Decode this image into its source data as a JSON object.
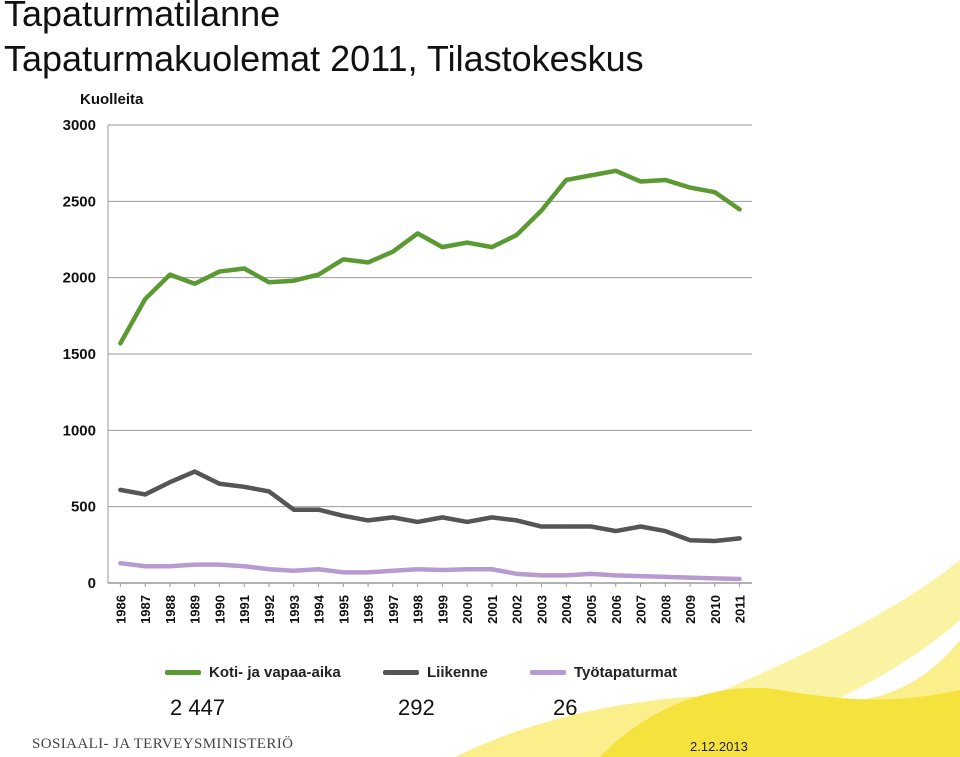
{
  "header": {
    "title_line1": "Tapaturmatilanne",
    "title_line2": "Tapaturmakuolemat 2011, Tilastokeskus"
  },
  "chart_data": {
    "type": "line",
    "ylabel": "Kuolleita",
    "ylim": [
      0,
      3000
    ],
    "yticks": [
      0,
      500,
      1000,
      1500,
      2000,
      2500,
      3000
    ],
    "grid": true,
    "legend_position": "bottom",
    "categories": [
      "1986",
      "1987",
      "1988",
      "1989",
      "1990",
      "1991",
      "1992",
      "1993",
      "1994",
      "1995",
      "1996",
      "1997",
      "1998",
      "1999",
      "2000",
      "2001",
      "2002",
      "2003",
      "2004",
      "2005",
      "2006",
      "2007",
      "2008",
      "2009",
      "2010",
      "2011"
    ],
    "series": [
      {
        "name": "Koti- ja vapaa-aika",
        "color": "#5b9a32",
        "values": [
          1570,
          1860,
          2020,
          1960,
          2040,
          2060,
          1970,
          1980,
          2020,
          2120,
          2100,
          2170,
          2290,
          2200,
          2230,
          2200,
          2280,
          2440,
          2640,
          2670,
          2700,
          2630,
          2640,
          2590,
          2560,
          2447
        ]
      },
      {
        "name": "Liikenne",
        "color": "#555555",
        "values": [
          610,
          580,
          660,
          730,
          650,
          630,
          600,
          480,
          480,
          440,
          410,
          430,
          400,
          430,
          400,
          430,
          410,
          370,
          370,
          370,
          340,
          370,
          340,
          280,
          275,
          292
        ]
      },
      {
        "name": "Työtapaturmat",
        "color": "#b79bd0",
        "values": [
          130,
          110,
          110,
          120,
          120,
          110,
          90,
          80,
          90,
          70,
          70,
          80,
          90,
          85,
          90,
          90,
          60,
          50,
          50,
          60,
          50,
          45,
          40,
          35,
          30,
          26
        ]
      }
    ]
  },
  "summary": {
    "values": [
      "2 447",
      "292",
      "26"
    ]
  },
  "footer": {
    "ministry": "SOSIAALI- JA TERVEYSMINISTERIÖ",
    "date": "2.12.2013"
  },
  "colors": {
    "grid": "#9a9a9a",
    "axis_text": "#111111",
    "decor_yellow": "#f6e23c",
    "decor_pale": "#fbf3a4"
  }
}
